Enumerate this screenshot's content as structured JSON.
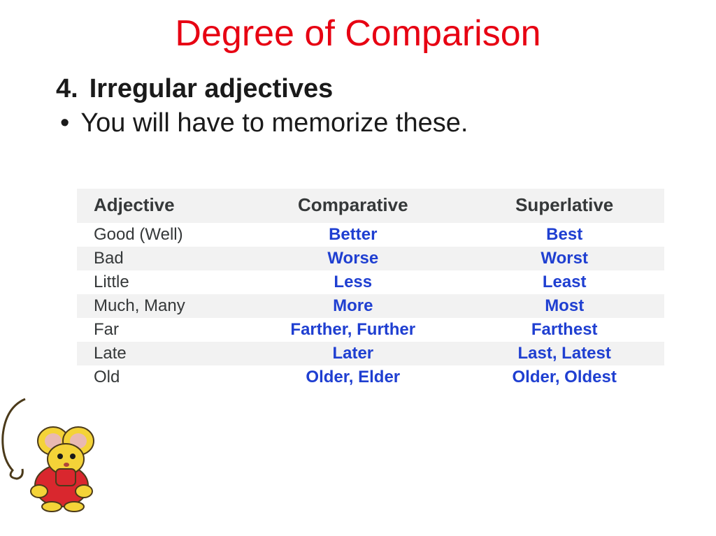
{
  "colors": {
    "title": "#e70012",
    "body": "#1a1a1a",
    "header": "#353839",
    "adjective_cell": "#353839",
    "comparative_cell": "#1f3fd1",
    "superlative_cell": "#1f3fd1",
    "shade_bg": "#f2f2f2",
    "mouse_body": "#f4d338",
    "mouse_shirt": "#d9272e",
    "mouse_ear_inner": "#e9b9b2",
    "mouse_outline": "#4b3a1a"
  },
  "title": "Degree of Comparison",
  "section_number": "4.",
  "section_title": "Irregular adjectives",
  "bullet": "You will have to memorize these.",
  "table": {
    "headers": [
      "Adjective",
      "Comparative",
      "Superlative"
    ],
    "rows": [
      {
        "adj": "Good (Well)",
        "comp": "Better",
        "sup": "Best"
      },
      {
        "adj": "Bad",
        "comp": "Worse",
        "sup": "Worst"
      },
      {
        "adj": "Little",
        "comp": "Less",
        "sup": "Least"
      },
      {
        "adj": "Much, Many",
        "comp": "More",
        "sup": "Most"
      },
      {
        "adj": "Far",
        "comp": "Farther, Further",
        "sup": "Farthest"
      },
      {
        "adj": "Late",
        "comp": "Later",
        "sup": "Last, Latest"
      },
      {
        "adj": "Old",
        "comp": "Older, Elder",
        "sup": "Older, Oldest"
      }
    ],
    "col_widths": [
      "28%",
      "38%",
      "34%"
    ],
    "header_fontsize": 26,
    "cell_fontsize": 24,
    "comp_sup_fontweight": "700"
  }
}
